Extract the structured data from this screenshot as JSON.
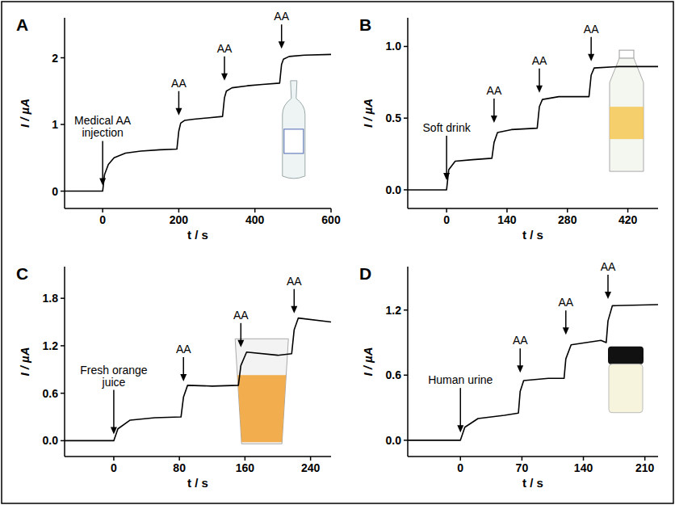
{
  "chart_data": [
    {
      "type": "line",
      "title": "A",
      "x_label": "t / s",
      "y_label": "I / µA",
      "color": "#000000",
      "grid": false,
      "xlim": [
        -100,
        600
      ],
      "xticks": [
        0,
        200,
        400,
        600
      ],
      "ylim": [
        -0.26,
        2.6
      ],
      "yticks": [
        0,
        1,
        2
      ],
      "x": [
        -100,
        -10,
        0,
        5,
        15,
        30,
        60,
        100,
        150,
        195,
        200,
        205,
        215,
        240,
        280,
        315,
        320,
        325,
        340,
        380,
        420,
        465,
        470,
        475,
        490,
        530,
        600
      ],
      "values": [
        0,
        0,
        0,
        0.25,
        0.4,
        0.5,
        0.57,
        0.6,
        0.62,
        0.63,
        0.9,
        1.02,
        1.06,
        1.08,
        1.1,
        1.12,
        1.4,
        1.5,
        1.55,
        1.58,
        1.6,
        1.62,
        1.9,
        1.98,
        2.02,
        2.04,
        2.05
      ],
      "annotations": [
        {
          "text": "Medical AA injection",
          "x": 0,
          "y": 0.05
        },
        {
          "text": "AA",
          "x": 200,
          "y": 1.1
        },
        {
          "text": "AA",
          "x": 320,
          "y": 1.62
        },
        {
          "text": "AA",
          "x": 470,
          "y": 2.1
        }
      ]
    },
    {
      "type": "line",
      "title": "B",
      "x_label": "t / s",
      "y_label": "I / µA",
      "color": "#000000",
      "grid": false,
      "xlim": [
        -90,
        490
      ],
      "xticks": [
        0,
        140,
        280,
        420
      ],
      "ylim": [
        -0.13,
        1.2
      ],
      "yticks": [
        {
          "value": 0,
          "label": "0.0"
        },
        0.5,
        {
          "value": 1,
          "label": "1.0"
        }
      ],
      "x": [
        -90,
        -5,
        0,
        5,
        20,
        60,
        105,
        110,
        118,
        150,
        210,
        215,
        222,
        260,
        330,
        335,
        342,
        400,
        490
      ],
      "values": [
        0,
        0,
        0,
        0.14,
        0.2,
        0.21,
        0.22,
        0.33,
        0.4,
        0.42,
        0.43,
        0.58,
        0.63,
        0.65,
        0.65,
        0.8,
        0.85,
        0.86,
        0.86
      ],
      "annotations": [
        {
          "text": "Soft drink",
          "x": 0,
          "y": 0.05
        },
        {
          "text": "AA",
          "x": 110,
          "y": 0.45
        },
        {
          "text": "AA",
          "x": 215,
          "y": 0.66
        },
        {
          "text": "AA",
          "x": 335,
          "y": 0.88
        }
      ]
    },
    {
      "type": "line",
      "title": "C",
      "x_label": "t / s",
      "y_label": "I / µA",
      "color": "#000000",
      "grid": false,
      "xlim": [
        -60,
        265
      ],
      "xticks": [
        0,
        80,
        160,
        240
      ],
      "ylim": [
        -0.2,
        2.2
      ],
      "yticks": [
        {
          "value": 0,
          "label": "0.0"
        },
        0.6,
        1.2,
        1.8
      ],
      "x": [
        -60,
        -5,
        0,
        5,
        20,
        50,
        82,
        85,
        90,
        120,
        152,
        155,
        162,
        200,
        217,
        220,
        225,
        265
      ],
      "values": [
        0,
        0,
        0,
        0.15,
        0.26,
        0.29,
        0.3,
        0.55,
        0.7,
        0.69,
        0.7,
        0.95,
        1.12,
        1.08,
        1.1,
        1.4,
        1.55,
        1.5
      ],
      "annotations": [
        {
          "text": "Fresh orange juice",
          "x": 0,
          "y": 0.05
        },
        {
          "text": "AA",
          "x": 85,
          "y": 0.72
        },
        {
          "text": "AA",
          "x": 155,
          "y": 1.15
        },
        {
          "text": "AA",
          "x": 220,
          "y": 1.58
        }
      ]
    },
    {
      "type": "line",
      "title": "D",
      "x_label": "t / s",
      "y_label": "I / µA",
      "color": "#000000",
      "grid": false,
      "xlim": [
        -60,
        225
      ],
      "xticks": [
        0,
        70,
        140,
        210
      ],
      "ylim": [
        -0.15,
        1.6
      ],
      "yticks": [
        {
          "value": 0,
          "label": "0.0"
        },
        0.6,
        1.2
      ],
      "x": [
        -60,
        -5,
        0,
        5,
        20,
        50,
        66,
        68,
        72,
        100,
        118,
        120,
        126,
        160,
        166,
        168,
        173,
        225
      ],
      "values": [
        0,
        0,
        0,
        0.12,
        0.2,
        0.23,
        0.25,
        0.45,
        0.55,
        0.57,
        0.57,
        0.75,
        0.88,
        0.92,
        0.9,
        1.1,
        1.24,
        1.25
      ],
      "annotations": [
        {
          "text": "Human urine",
          "x": 0,
          "y": 0.05
        },
        {
          "text": "AA",
          "x": 68,
          "y": 0.6
        },
        {
          "text": "AA",
          "x": 120,
          "y": 0.95
        },
        {
          "text": "AA",
          "x": 168,
          "y": 1.28
        }
      ]
    }
  ]
}
